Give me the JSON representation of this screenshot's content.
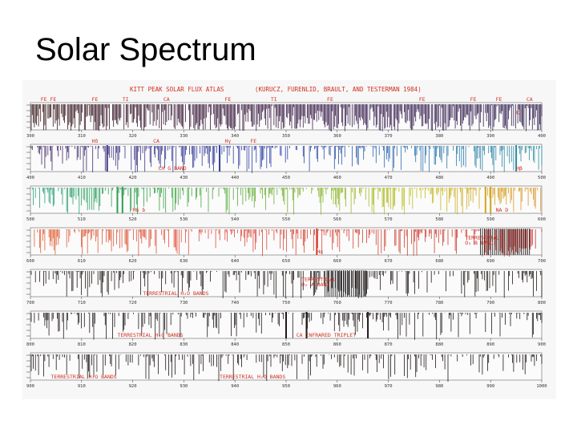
{
  "slide": {
    "title": "Solar Spectrum"
  },
  "atlas": {
    "title": "KITT PEAK SOLAR FLUX ATLAS",
    "citation": "(KURUCZ, FURENLID, BRAULT, AND TESTERMAN 1984)",
    "colors": {
      "label": "#d03020",
      "frame": "#444444"
    },
    "rows": [
      {
        "ticks": [
          "300",
          "310",
          "320",
          "330",
          "340",
          "350",
          "360",
          "370",
          "380",
          "390",
          "400"
        ],
        "colors": [
          "#3a1a1a",
          "#3a1a3a",
          "#3a2050",
          "#302050"
        ],
        "labels": [
          {
            "text": "FE FE",
            "pos": 0.02,
            "where": "top"
          },
          {
            "text": "FE",
            "pos": 0.12,
            "where": "top"
          },
          {
            "text": "TI",
            "pos": 0.18,
            "where": "top"
          },
          {
            "text": "CA",
            "pos": 0.26,
            "where": "top"
          },
          {
            "text": "FE",
            "pos": 0.38,
            "where": "top"
          },
          {
            "text": "TI",
            "pos": 0.47,
            "where": "top"
          },
          {
            "text": "FE",
            "pos": 0.58,
            "where": "top"
          },
          {
            "text": "FE",
            "pos": 0.76,
            "where": "top"
          },
          {
            "text": "FE",
            "pos": 0.86,
            "where": "top"
          },
          {
            "text": "FE",
            "pos": 0.91,
            "where": "top"
          },
          {
            "text": "CA",
            "pos": 0.97,
            "where": "top"
          },
          {
            "text": "K",
            "pos": 0.95,
            "where": "inside"
          }
        ],
        "strongLines": []
      },
      {
        "ticks": [
          "400",
          "410",
          "420",
          "430",
          "440",
          "450",
          "460",
          "470",
          "480",
          "490",
          "500"
        ],
        "colors": [
          "#402060",
          "#3a3a90",
          "#2a40a8",
          "#2a70b0",
          "#2a90a0"
        ],
        "labels": [
          {
            "text": "Hδ",
            "pos": 0.12,
            "where": "top"
          },
          {
            "text": "CA",
            "pos": 0.24,
            "where": "top"
          },
          {
            "text": "Hγ",
            "pos": 0.38,
            "where": "top"
          },
          {
            "text": "FE",
            "pos": 0.43,
            "where": "top"
          },
          {
            "text": "CH G BAND",
            "pos": 0.25,
            "where": "bottom"
          },
          {
            "text": "Hβ",
            "pos": 0.95,
            "where": "bottom"
          }
        ],
        "strongLines": [
          0.15,
          0.37,
          0.95
        ]
      },
      {
        "ticks": [
          "500",
          "510",
          "520",
          "530",
          "540",
          "550",
          "560",
          "570",
          "580",
          "590",
          "600"
        ],
        "colors": [
          "#2aa080",
          "#30a040",
          "#70b030",
          "#c0c020",
          "#e09020"
        ],
        "labels": [
          {
            "text": "MG b",
            "pos": 0.2,
            "where": "bottom"
          },
          {
            "text": "NA D",
            "pos": 0.91,
            "where": "bottom"
          }
        ],
        "strongLines": [
          0.17,
          0.18,
          0.89,
          0.9
        ]
      },
      {
        "ticks": [
          "600",
          "610",
          "620",
          "630",
          "640",
          "650",
          "660",
          "670",
          "680",
          "690",
          "700"
        ],
        "colors": [
          "#e06030",
          "#e05040",
          "#d04030",
          "#c83030"
        ],
        "labels": [
          {
            "text": "Hα",
            "pos": 0.56,
            "where": "bottom"
          },
          {
            "text": "TERRESTRIAL",
            "pos": 0.85,
            "where": "inside"
          },
          {
            "text": "O₂ B BAND",
            "pos": 0.85,
            "where": "inside2"
          }
        ],
        "strongLines": [
          0.56
        ],
        "band": [
          0.88,
          0.98
        ]
      },
      {
        "ticks": [
          "700",
          "710",
          "720",
          "730",
          "740",
          "750",
          "760",
          "770",
          "780",
          "790",
          "800"
        ],
        "colors": [
          "#201818",
          "#201818"
        ],
        "labels": [
          {
            "text": "TERRESTRIAL H₂O BANDS",
            "pos": 0.22,
            "where": "bottom"
          },
          {
            "text": "TERRESTRIAL",
            "pos": 0.53,
            "where": "inside"
          },
          {
            "text": "O₂ A BAND",
            "pos": 0.53,
            "where": "inside2"
          }
        ],
        "strongLines": [],
        "band": [
          0.58,
          0.66
        ]
      },
      {
        "ticks": [
          "800",
          "810",
          "820",
          "830",
          "840",
          "850",
          "860",
          "870",
          "880",
          "890",
          "900"
        ],
        "colors": [
          "#201818",
          "#201818"
        ],
        "labels": [
          {
            "text": "TERRESTRIAL H₂O BANDS",
            "pos": 0.17,
            "where": "bottom"
          },
          {
            "text": "CA INFRARED TRIPLET",
            "pos": 0.52,
            "where": "bottom"
          }
        ],
        "strongLines": [
          0.5,
          0.54,
          0.66
        ]
      },
      {
        "ticks": [
          "900",
          "910",
          "920",
          "930",
          "940",
          "950",
          "960",
          "970",
          "980",
          "990",
          "1000"
        ],
        "colors": [
          "#201818",
          "#201818"
        ],
        "labels": [
          {
            "text": "TERRESTRIAL H₂O BANDS",
            "pos": 0.04,
            "where": "bottom"
          },
          {
            "text": "TERRESTRIAL H₂O BANDS",
            "pos": 0.37,
            "where": "bottom"
          }
        ],
        "strongLines": []
      }
    ]
  }
}
